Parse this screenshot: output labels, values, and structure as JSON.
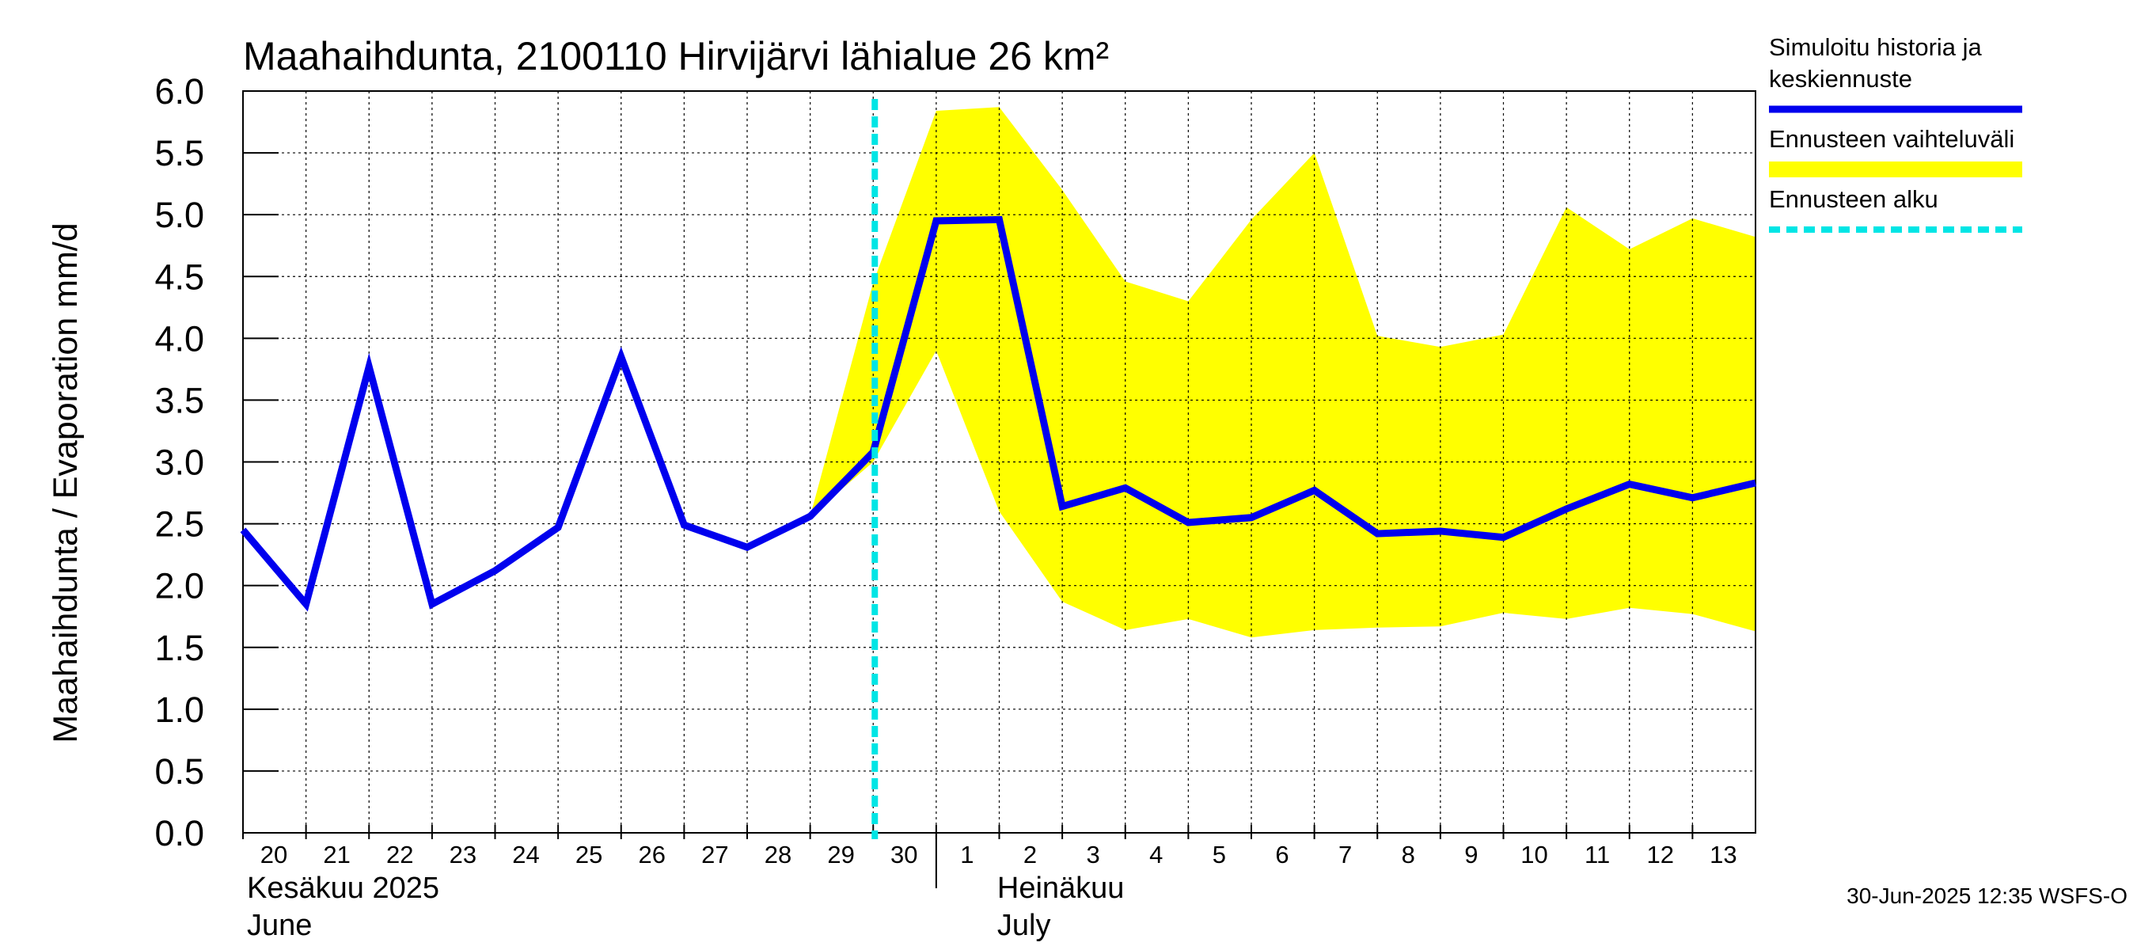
{
  "chart_data": {
    "type": "line",
    "title": "Maahaihdunta, 2100110 Hirvijärvi lähialue 26 km²",
    "ylabel": "Maahaihdunta / Evaporation   mm/d",
    "ylim": [
      0,
      6
    ],
    "yticks": [
      "0.0",
      "0.5",
      "1.0",
      "1.5",
      "2.0",
      "2.5",
      "3.0",
      "3.5",
      "4.0",
      "4.5",
      "5.0",
      "5.5",
      "6.0"
    ],
    "x": [
      "2025-06-20",
      "2025-06-21",
      "2025-06-22",
      "2025-06-23",
      "2025-06-24",
      "2025-06-25",
      "2025-06-26",
      "2025-06-27",
      "2025-06-28",
      "2025-06-29",
      "2025-06-30",
      "2025-07-01",
      "2025-07-02",
      "2025-07-03",
      "2025-07-04",
      "2025-07-05",
      "2025-07-06",
      "2025-07-07",
      "2025-07-08",
      "2025-07-09",
      "2025-07-10",
      "2025-07-11",
      "2025-07-12",
      "2025-07-13",
      "2025-07-14"
    ],
    "xtick_labels": [
      "20",
      "21",
      "22",
      "23",
      "24",
      "25",
      "26",
      "27",
      "28",
      "29",
      "30",
      "1",
      "2",
      "3",
      "4",
      "5",
      "6",
      "7",
      "8",
      "9",
      "10",
      "11",
      "12",
      "13"
    ],
    "month_labels": [
      {
        "lines": [
          "Kesäkuu   2025",
          "June"
        ]
      },
      {
        "lines": [
          "Heinäkuu",
          "July"
        ]
      }
    ],
    "series": [
      {
        "name": "Simuloitu historia ja keskiennuste",
        "color": "#0000ee",
        "values": [
          2.45,
          1.85,
          3.77,
          1.85,
          2.12,
          2.47,
          3.85,
          2.49,
          2.31,
          2.56,
          3.08,
          4.95,
          4.96,
          2.64,
          2.79,
          2.51,
          2.55,
          2.77,
          2.42,
          2.44,
          2.39,
          2.62,
          2.82,
          2.71,
          2.83
        ]
      }
    ],
    "band": {
      "name": "Ennusteen vaihteluväli",
      "color": "#ffff00",
      "start_index": 9,
      "upper": [
        2.56,
        4.45,
        5.84,
        5.87,
        5.2,
        4.46,
        4.3,
        4.96,
        5.5,
        4.02,
        3.93,
        4.03,
        5.06,
        4.72,
        4.97,
        4.82
      ],
      "lower": [
        2.56,
        3.0,
        3.9,
        2.6,
        1.87,
        1.64,
        1.73,
        1.58,
        1.64,
        1.66,
        1.67,
        1.78,
        1.73,
        1.82,
        1.77,
        1.63
      ]
    },
    "forecast_start": {
      "name": "Ennusteen alku",
      "color": "#00e5e5",
      "x": "2025-06-30"
    },
    "legend": {
      "placement": "right",
      "entries": [
        {
          "label_lines": [
            "Simuloitu historia ja",
            "keskiennuste"
          ],
          "color": "#0000ee",
          "style": "line"
        },
        {
          "label_lines": [
            "Ennusteen vaihteluväli"
          ],
          "color": "#ffff00",
          "style": "band"
        },
        {
          "label_lines": [
            "Ennusteen alku"
          ],
          "color": "#00e5e5",
          "style": "dashed"
        }
      ]
    },
    "grid": true
  },
  "footer": "30-Jun-2025 12:35 WSFS-O"
}
